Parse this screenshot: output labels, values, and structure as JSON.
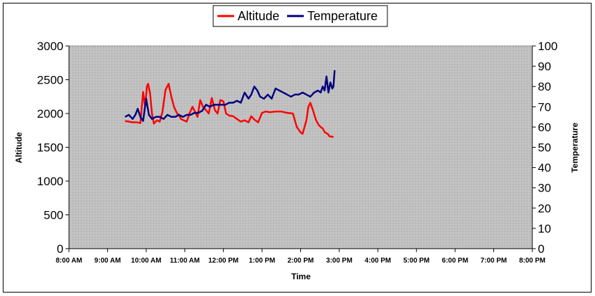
{
  "chart_data": {
    "type": "line",
    "title": "",
    "xlabel": "Time",
    "ylabel_left": "Altitude",
    "ylabel_right": "Temperature",
    "x_ticks": [
      "8:00 AM",
      "9:00 AM",
      "10:00 AM",
      "11:00 AM",
      "12:00 PM",
      "1:00 PM",
      "2:00 PM",
      "3:00 PM",
      "4:00 PM",
      "5:00 PM",
      "6:00 PM",
      "7:00 PM",
      "8:00 PM"
    ],
    "xlim_hours": [
      8,
      20
    ],
    "y_left_ticks": [
      0,
      500,
      1000,
      1500,
      2000,
      2500,
      3000
    ],
    "y_left_lim": [
      0,
      3000
    ],
    "y_right_ticks": [
      0,
      10,
      20,
      30,
      40,
      50,
      60,
      70,
      80,
      90,
      100
    ],
    "y_right_lim": [
      0,
      100
    ],
    "legend": {
      "placement": "top-center"
    },
    "plot_background": "#c0c0c0",
    "series": [
      {
        "name": "Altitude",
        "axis": "left",
        "color": "#ff0000",
        "x_hours": [
          9.45,
          9.55,
          9.65,
          9.75,
          9.85,
          9.92,
          9.97,
          10.02,
          10.05,
          10.1,
          10.15,
          10.2,
          10.28,
          10.35,
          10.42,
          10.5,
          10.58,
          10.65,
          10.72,
          10.8,
          10.85,
          10.9,
          10.97,
          11.05,
          11.12,
          11.2,
          11.27,
          11.33,
          11.4,
          11.47,
          11.55,
          11.62,
          11.7,
          11.78,
          11.85,
          11.92,
          12.0,
          12.07,
          12.15,
          12.25,
          12.35,
          12.45,
          12.55,
          12.65,
          12.72,
          12.8,
          12.9,
          13.0,
          13.1,
          13.2,
          13.35,
          13.5,
          13.65,
          13.8,
          13.9,
          14.0,
          14.05,
          14.15,
          14.2,
          14.25,
          14.32,
          14.4,
          14.47,
          14.52,
          14.57,
          14.63,
          14.7,
          14.75,
          14.8,
          14.85
        ],
        "values": [
          1890,
          1880,
          1870,
          1870,
          1860,
          2320,
          2100,
          2400,
          2440,
          2300,
          2000,
          1850,
          1900,
          1880,
          2020,
          2350,
          2440,
          2250,
          2100,
          2000,
          1980,
          1920,
          1900,
          1880,
          2000,
          2100,
          2020,
          1950,
          2200,
          2100,
          2050,
          2000,
          2230,
          2050,
          2000,
          2200,
          2180,
          2000,
          1970,
          1960,
          1920,
          1880,
          1900,
          1870,
          1960,
          1910,
          1870,
          2010,
          2030,
          2020,
          2030,
          2030,
          2010,
          2000,
          1800,
          1720,
          1700,
          1900,
          2100,
          2160,
          2050,
          1900,
          1830,
          1800,
          1780,
          1720,
          1700,
          1660,
          1660,
          1650
        ]
      },
      {
        "name": "Temperature",
        "axis": "right",
        "color": "#000080",
        "x_hours": [
          9.45,
          9.55,
          9.65,
          9.72,
          9.78,
          9.85,
          9.92,
          10.0,
          10.07,
          10.15,
          10.25,
          10.35,
          10.45,
          10.55,
          10.65,
          10.75,
          10.85,
          10.95,
          11.05,
          11.15,
          11.25,
          11.35,
          11.45,
          11.55,
          11.65,
          11.75,
          11.85,
          11.95,
          12.05,
          12.15,
          12.25,
          12.35,
          12.45,
          12.55,
          12.65,
          12.72,
          12.8,
          12.88,
          12.95,
          13.05,
          13.15,
          13.25,
          13.35,
          13.45,
          13.55,
          13.65,
          13.75,
          13.85,
          13.95,
          14.05,
          14.15,
          14.25,
          14.35,
          14.45,
          14.52,
          14.57,
          14.62,
          14.67,
          14.72,
          14.77,
          14.82,
          14.85,
          14.88
        ],
        "values": [
          65,
          66,
          64,
          66,
          69,
          65,
          63,
          74,
          66,
          64,
          65,
          65,
          64,
          66,
          65,
          65,
          66,
          65,
          66,
          66,
          67,
          67,
          68,
          71,
          70,
          71,
          71,
          71,
          71,
          72,
          72,
          73,
          72,
          77,
          74,
          76,
          80,
          78,
          75,
          74,
          76,
          74,
          79,
          78,
          77,
          76,
          75,
          76,
          76,
          77,
          76,
          75,
          77,
          78,
          77,
          80,
          78,
          85,
          77,
          82,
          79,
          80,
          88
        ]
      }
    ]
  }
}
